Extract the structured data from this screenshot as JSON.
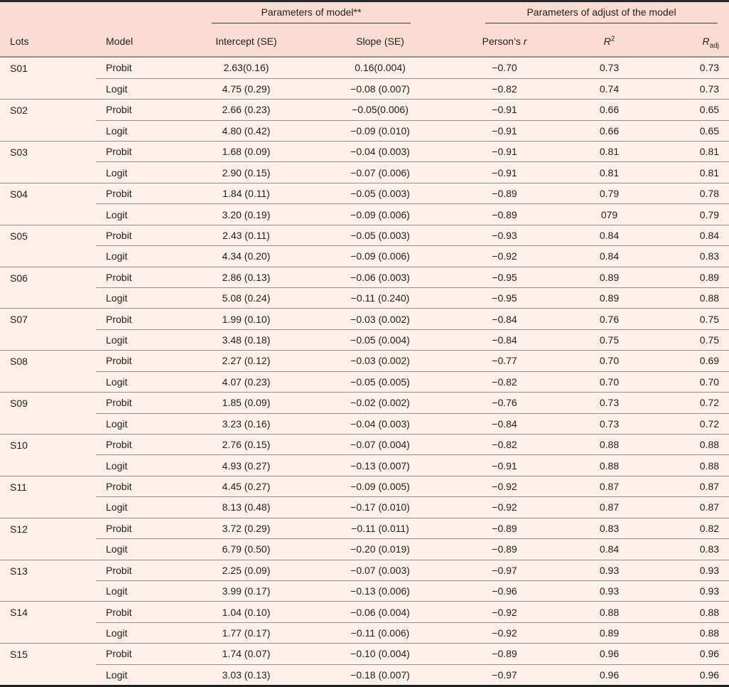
{
  "colors": {
    "header_background": "#fbdcd2",
    "body_background": "#fdefe9",
    "top_bottom_rule": "#2a2a2a",
    "row_rule": "#8d8d8d",
    "text": "#212121"
  },
  "table": {
    "group_headers": [
      "Parameters of model**",
      "Parameters of adjust of the model"
    ],
    "columns": {
      "lots": "Lots",
      "model": "Model",
      "intercept": "Intercept (SE)",
      "slope": "Slope (SE)",
      "pearson_prefix": "Person’s",
      "pearson_var": "r",
      "r2_base": "R",
      "r2_sup": "2",
      "radj_base": "R",
      "radj_sub": "adj"
    },
    "lots": [
      {
        "lot": "S01",
        "models": [
          {
            "model": "Probit",
            "intercept": "2.63(0.16)",
            "slope": "0.16(0.004)",
            "pearson": "−0.70",
            "r2": "0.73",
            "radj": "0.73"
          },
          {
            "model": "Logit",
            "intercept": "4.75 (0.29)",
            "slope": "−0.08 (0.007)",
            "pearson": "−0.82",
            "r2": "0.74",
            "radj": "0.73"
          }
        ]
      },
      {
        "lot": "S02",
        "models": [
          {
            "model": "Probit",
            "intercept": "2.66 (0.23)",
            "slope": "−0.05(0.006)",
            "pearson": "−0.91",
            "r2": "0.66",
            "radj": "0.65"
          },
          {
            "model": "Logit",
            "intercept": "4.80 (0.42)",
            "slope": "−0.09 (0.010)",
            "pearson": "−0.91",
            "r2": "0.66",
            "radj": "0.65"
          }
        ]
      },
      {
        "lot": "S03",
        "models": [
          {
            "model": "Probit",
            "intercept": "1.68 (0.09)",
            "slope": "−0.04 (0.003)",
            "pearson": "−0.91",
            "r2": "0.81",
            "radj": "0.81"
          },
          {
            "model": "Logit",
            "intercept": "2.90 (0.15)",
            "slope": "−0.07 (0.006)",
            "pearson": "−0.91",
            "r2": "0.81",
            "radj": "0.81"
          }
        ]
      },
      {
        "lot": "S04",
        "models": [
          {
            "model": "Probit",
            "intercept": "1.84 (0.11)",
            "slope": "−0.05 (0.003)",
            "pearson": "−0.89",
            "r2": "0.79",
            "radj": "0.78"
          },
          {
            "model": "Logit",
            "intercept": "3.20 (0.19)",
            "slope": "−0.09 (0.006)",
            "pearson": "−0.89",
            "r2": "079",
            "radj": "0.79"
          }
        ]
      },
      {
        "lot": "S05",
        "models": [
          {
            "model": "Probit",
            "intercept": "2.43 (0.11)",
            "slope": "−0.05 (0.003)",
            "pearson": "−0.93",
            "r2": "0.84",
            "radj": "0.84"
          },
          {
            "model": "Logit",
            "intercept": "4.34 (0.20)",
            "slope": "−0.09 (0.006)",
            "pearson": "−0.92",
            "r2": "0.84",
            "radj": "0.83"
          }
        ]
      },
      {
        "lot": "S06",
        "models": [
          {
            "model": "Probit",
            "intercept": "2.86 (0.13)",
            "slope": "−0.06 (0.003)",
            "pearson": "−0.95",
            "r2": "0.89",
            "radj": "0.89"
          },
          {
            "model": "Logit",
            "intercept": "5.08 (0.24)",
            "slope": "−0.11 (0.240)",
            "pearson": "−0.95",
            "r2": "0.89",
            "radj": "0.88"
          }
        ]
      },
      {
        "lot": "S07",
        "models": [
          {
            "model": "Probit",
            "intercept": "1.99 (0.10)",
            "slope": "−0.03 (0.002)",
            "pearson": "−0.84",
            "r2": "0.76",
            "radj": "0.75"
          },
          {
            "model": "Logit",
            "intercept": "3.48 (0.18)",
            "slope": "−0.05 (0.004)",
            "pearson": "−0.84",
            "r2": "0.75",
            "radj": "0.75"
          }
        ]
      },
      {
        "lot": "S08",
        "models": [
          {
            "model": "Probit",
            "intercept": "2.27 (0.12)",
            "slope": "−0.03 (0.002)",
            "pearson": "−0.77",
            "r2": "0.70",
            "radj": "0.69"
          },
          {
            "model": "Logit",
            "intercept": "4.07 (0.23)",
            "slope": "−0.05 (0.005)",
            "pearson": "−0.82",
            "r2": "0.70",
            "radj": "0.70"
          }
        ]
      },
      {
        "lot": "S09",
        "models": [
          {
            "model": "Probit",
            "intercept": "1.85 (0.09)",
            "slope": "−0.02 (0.002)",
            "pearson": "−0.76",
            "r2": "0.73",
            "radj": "0.72"
          },
          {
            "model": "Logit",
            "intercept": "3.23 (0.16)",
            "slope": "−0.04 (0.003)",
            "pearson": "−0.84",
            "r2": "0.73",
            "radj": "0.72"
          }
        ]
      },
      {
        "lot": "S10",
        "models": [
          {
            "model": "Probit",
            "intercept": "2.76 (0.15)",
            "slope": "−0.07 (0.004)",
            "pearson": "−0.82",
            "r2": "0.88",
            "radj": "0.88"
          },
          {
            "model": "Logit",
            "intercept": "4.93 (0.27)",
            "slope": "−0.13 (0.007)",
            "pearson": "−0.91",
            "r2": "0.88",
            "radj": "0.88"
          }
        ]
      },
      {
        "lot": "S11",
        "models": [
          {
            "model": "Probit",
            "intercept": "4.45 (0.27)",
            "slope": "−0.09 (0.005)",
            "pearson": "−0.92",
            "r2": "0.87",
            "radj": "0.87"
          },
          {
            "model": "Logit",
            "intercept": "8.13 (0.48)",
            "slope": "−0.17 (0.010)",
            "pearson": "−0.92",
            "r2": "0.87",
            "radj": "0.87"
          }
        ]
      },
      {
        "lot": "S12",
        "models": [
          {
            "model": "Probit",
            "intercept": "3.72 (0.29)",
            "slope": "−0.11 (0.011)",
            "pearson": "−0.89",
            "r2": "0.83",
            "radj": "0.82"
          },
          {
            "model": "Logit",
            "intercept": "6.79 (0.50)",
            "slope": "−0.20 (0.019)",
            "pearson": "−0.89",
            "r2": "0.84",
            "radj": "0.83"
          }
        ]
      },
      {
        "lot": "S13",
        "models": [
          {
            "model": "Probit",
            "intercept": "2.25 (0.09)",
            "slope": "−0.07 (0.003)",
            "pearson": "−0.97",
            "r2": "0.93",
            "radj": "0.93"
          },
          {
            "model": "Logit",
            "intercept": "3.99 (0.17)",
            "slope": "−0.13 (0.006)",
            "pearson": "−0.96",
            "r2": "0.93",
            "radj": "0.93"
          }
        ]
      },
      {
        "lot": "S14",
        "models": [
          {
            "model": "Probit",
            "intercept": "1.04 (0.10)",
            "slope": "−0.06 (0.004)",
            "pearson": "−0.92",
            "r2": "0.88",
            "radj": "0.88"
          },
          {
            "model": "Logit",
            "intercept": "1.77 (0.17)",
            "slope": "−0.11 (0.006)",
            "pearson": "−0.92",
            "r2": "0.89",
            "radj": "0.88"
          }
        ]
      },
      {
        "lot": "S15",
        "models": [
          {
            "model": "Probit",
            "intercept": "1.74 (0.07)",
            "slope": "−0.10 (0.004)",
            "pearson": "−0.89",
            "r2": "0.96",
            "radj": "0.96"
          },
          {
            "model": "Logit",
            "intercept": "3.03 (0.13)",
            "slope": "−0.18 (0.007)",
            "pearson": "−0.97",
            "r2": "0.96",
            "radj": "0.96"
          }
        ]
      }
    ]
  }
}
